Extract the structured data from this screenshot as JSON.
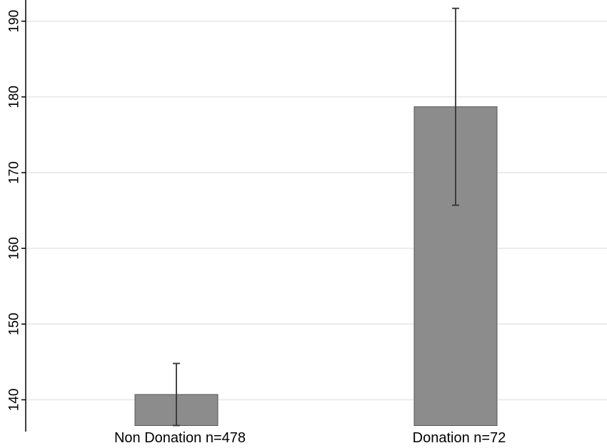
{
  "chart_data": {
    "type": "bar",
    "title": "",
    "xlabel": "",
    "ylabel": "",
    "categories": [
      "Non Donation n=478",
      "Donation n=72"
    ],
    "values": [
      140.7,
      178.7
    ],
    "error_low": [
      136.6,
      165.7
    ],
    "error_high": [
      144.8,
      191.7
    ],
    "bar_base": 136.6,
    "ylim": [
      135.8,
      192.8
    ],
    "yticks": [
      140,
      150,
      160,
      170,
      180,
      190
    ],
    "grid": true,
    "legend": "none",
    "bar_color": "#8c8c8c",
    "grid_color": "#e6e6e6"
  }
}
